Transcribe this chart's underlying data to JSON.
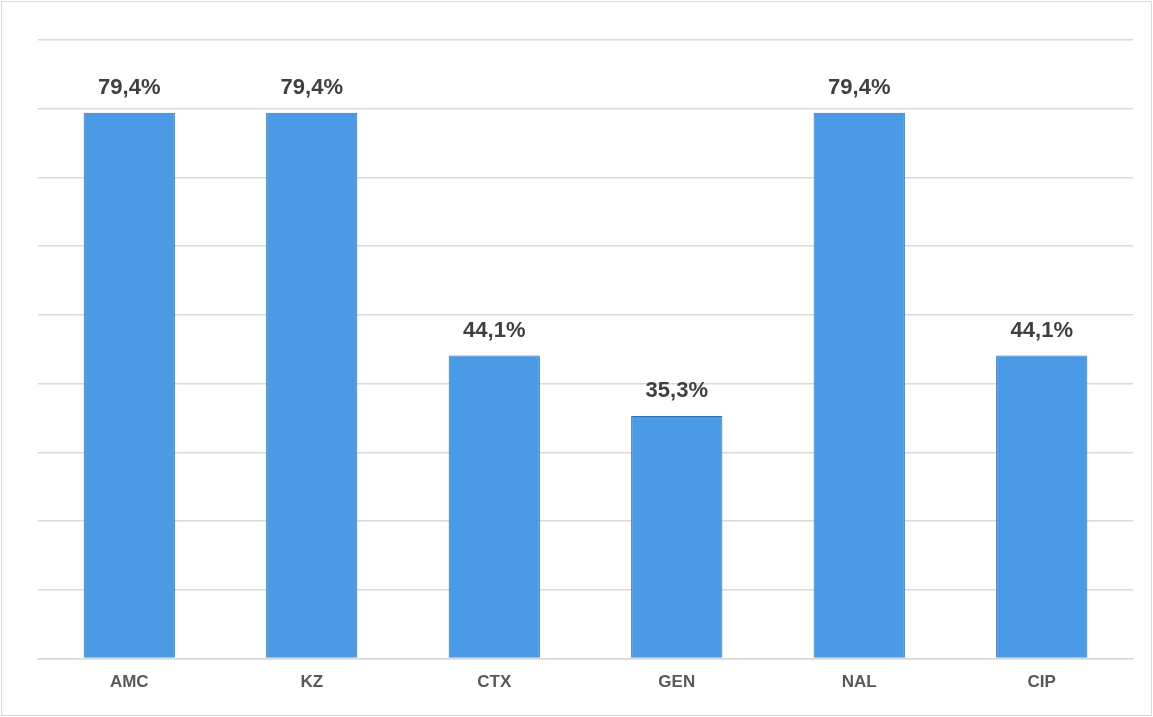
{
  "chart_data": {
    "type": "bar",
    "categories": [
      "AMC",
      "KZ",
      "CTX",
      "GEN",
      "NAL",
      "CIP"
    ],
    "values": [
      79.4,
      79.4,
      44.1,
      35.3,
      79.4,
      44.1
    ],
    "value_labels": [
      "79,4%",
      "79,4%",
      "44,1%",
      "35,3%",
      "79,4%",
      "44,1%"
    ],
    "color": "#4a9ae6",
    "ylim": [
      0,
      90
    ],
    "yticks": [
      {
        "value": 0,
        "label": null
      },
      {
        "value": 10,
        "label": null
      },
      {
        "value": 20,
        "label": null
      },
      {
        "value": 30,
        "label": null
      },
      {
        "value": 40,
        "label": null
      },
      {
        "value": 50,
        "label": null
      },
      {
        "value": 60,
        "label": null
      },
      {
        "value": 70,
        "label": null
      },
      {
        "value": 80,
        "label": null
      },
      {
        "value": 90,
        "label": null
      }
    ],
    "grid": "y",
    "tick_labels": "x"
  }
}
